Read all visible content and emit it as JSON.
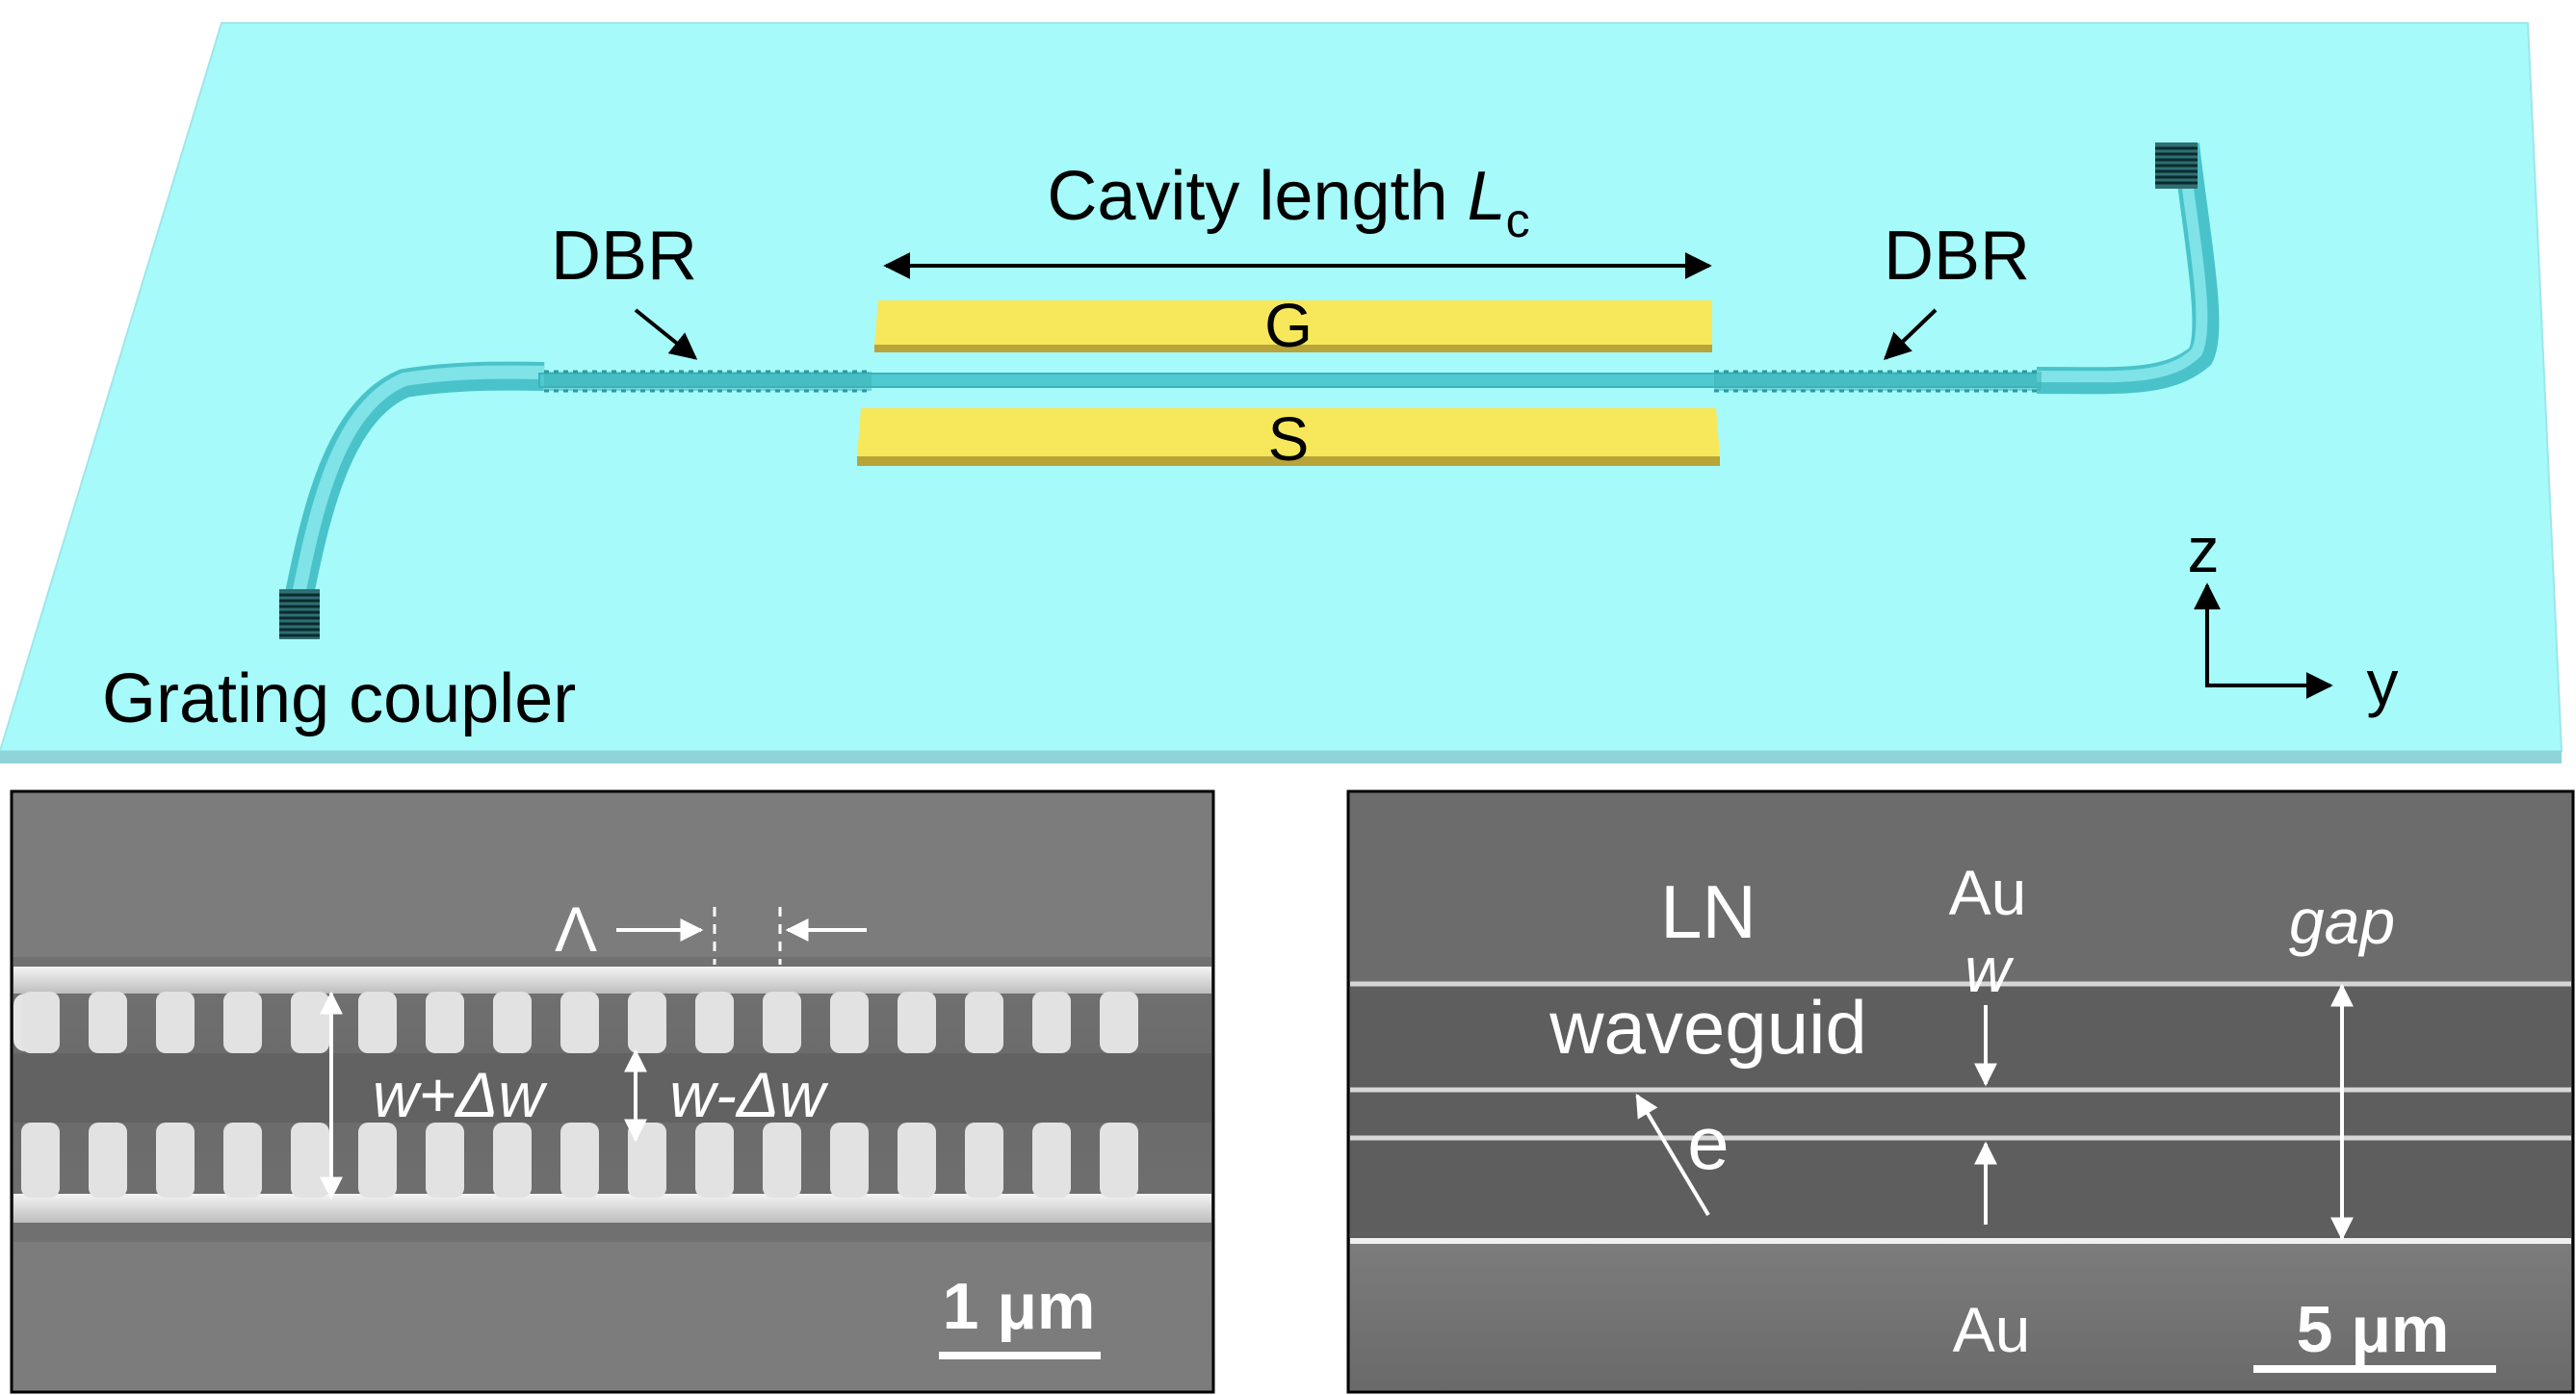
{
  "colors": {
    "substrate": "#a6fafa",
    "substrate_edge": "#8fd4d8",
    "waveguide": "#5fd6dc",
    "electrode_top": "#f6e85a",
    "electrode_side": "#b9a43a",
    "sem_background": "#6e6e6e"
  },
  "schematic": {
    "cavity_label": "Cavity length ",
    "cavity_symbol": "L",
    "cavity_subscript": "c",
    "dbr_left_label": "DBR",
    "dbr_right_label": "DBR",
    "ground_electrode_label": "G",
    "signal_electrode_label": "S",
    "grating_coupler_label": "Grating coupler",
    "axis_z_label": "z",
    "axis_y_label": "y"
  },
  "sem_left": {
    "period_label": "Λ",
    "wide_label": "w+Δw",
    "narrow_label": "w-Δw",
    "scale_bar_label": "1 μm"
  },
  "sem_right": {
    "ln_label": "LN",
    "waveguide_label": "waveguid",
    "waveguide_label_tail": "e",
    "au_top_label": "Au",
    "w_label": "w",
    "gap_label": "gap",
    "au_bottom_label": "Au",
    "scale_bar_label": "5 μm"
  }
}
